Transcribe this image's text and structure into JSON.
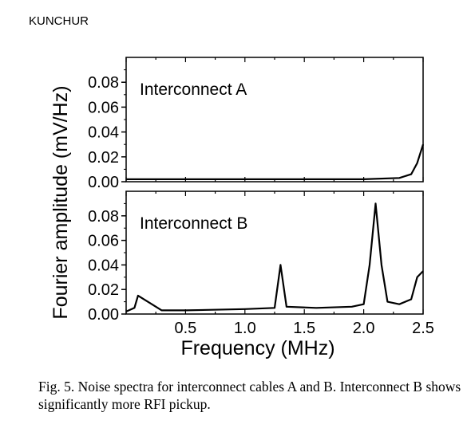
{
  "header": "KUNCHUR",
  "caption": "Fig. 5. Noise spectra for interconnect cables A and B. Interconnect B shows significantly more RFI pickup.",
  "chart_data": {
    "type": "line",
    "xlabel": "Frequency (MHz)",
    "ylabel": "Fourier amplitude (mV/Hz)",
    "xlim": [
      0,
      2.5
    ],
    "x_ticks": [
      "0.5",
      "1.0",
      "1.5",
      "2.0",
      "2.5"
    ],
    "panels": [
      {
        "label": "Interconnect A",
        "ylim": [
          0,
          0.1
        ],
        "y_ticks": [
          "0.00",
          "0.02",
          "0.04",
          "0.06",
          "0.08"
        ],
        "x": [
          0.0,
          0.5,
          1.0,
          1.5,
          2.0,
          2.3,
          2.4,
          2.45,
          2.5
        ],
        "y": [
          0.002,
          0.002,
          0.002,
          0.002,
          0.002,
          0.003,
          0.006,
          0.015,
          0.03
        ]
      },
      {
        "label": "Interconnect B",
        "ylim": [
          0,
          0.1
        ],
        "y_ticks": [
          "0.00",
          "0.02",
          "0.04",
          "0.06",
          "0.08"
        ],
        "x": [
          0.0,
          0.07,
          0.1,
          0.3,
          0.5,
          1.0,
          1.25,
          1.3,
          1.35,
          1.6,
          1.9,
          2.0,
          2.05,
          2.1,
          2.15,
          2.2,
          2.3,
          2.4,
          2.45,
          2.5
        ],
        "y": [
          0.002,
          0.005,
          0.015,
          0.003,
          0.003,
          0.004,
          0.005,
          0.04,
          0.006,
          0.005,
          0.006,
          0.008,
          0.04,
          0.09,
          0.04,
          0.01,
          0.008,
          0.012,
          0.03,
          0.035
        ]
      }
    ]
  }
}
